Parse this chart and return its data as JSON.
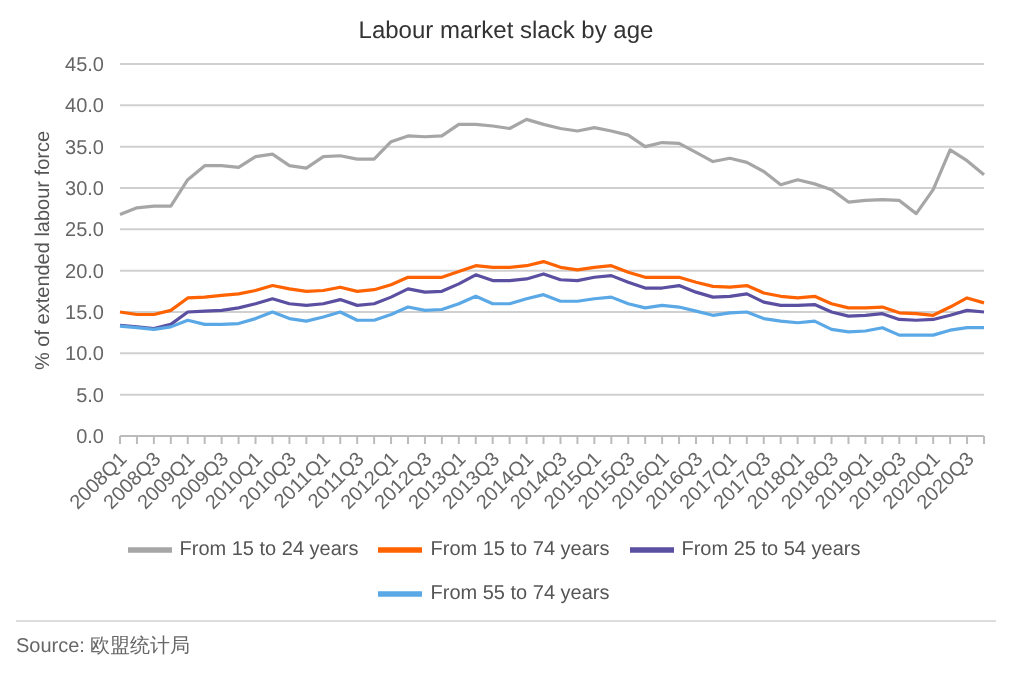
{
  "chart_data": {
    "type": "line",
    "title": "Labour market slack by age",
    "ylabel": "% of extended labour force",
    "categories": [
      "2008Q1",
      null,
      "2008Q3",
      null,
      "2009Q1",
      null,
      "2009Q3",
      null,
      "2010Q1",
      null,
      "2010Q3",
      null,
      "2011Q1",
      null,
      "2011Q3",
      null,
      "2012Q1",
      null,
      "2012Q3",
      null,
      "2013Q1",
      null,
      "2013Q3",
      null,
      "2014Q1",
      null,
      "2014Q3",
      null,
      "2015Q1",
      null,
      "2015Q3",
      null,
      "2016Q1",
      null,
      "2016Q3",
      null,
      "2017Q1",
      null,
      "2017Q3",
      null,
      "2018Q1",
      null,
      "2018Q3",
      null,
      "2019Q1",
      null,
      "2019Q3",
      null,
      "2020Q1",
      null,
      "2020Q3",
      null
    ],
    "series": [
      {
        "name": "From 15 to 24 years",
        "color": "#a6a6a6",
        "values": [
          26.8,
          27.6,
          27.8,
          27.8,
          31.0,
          32.7,
          32.7,
          32.5,
          33.8,
          34.1,
          32.7,
          32.4,
          33.8,
          33.9,
          33.5,
          33.5,
          35.6,
          36.3,
          36.2,
          36.3,
          37.7,
          37.7,
          37.5,
          37.2,
          38.3,
          37.7,
          37.2,
          36.9,
          37.3,
          36.9,
          36.4,
          35.0,
          35.5,
          35.4,
          34.3,
          33.2,
          33.6,
          33.1,
          32.0,
          30.4,
          31.0,
          30.5,
          29.8,
          28.3,
          28.5,
          28.6,
          28.5,
          26.9,
          29.8,
          34.6,
          33.3,
          31.6
        ]
      },
      {
        "name": "From 15 to 74 years",
        "color": "#ff6200",
        "values": [
          15.0,
          14.7,
          14.7,
          15.2,
          16.7,
          16.8,
          17.0,
          17.2,
          17.6,
          18.2,
          17.8,
          17.5,
          17.6,
          18.0,
          17.5,
          17.7,
          18.3,
          19.2,
          19.2,
          19.2,
          19.9,
          20.6,
          20.4,
          20.4,
          20.6,
          21.1,
          20.4,
          20.1,
          20.4,
          20.6,
          19.8,
          19.2,
          19.2,
          19.2,
          18.6,
          18.1,
          18.0,
          18.2,
          17.3,
          16.9,
          16.7,
          16.9,
          16.0,
          15.5,
          15.5,
          15.6,
          14.9,
          14.8,
          14.6,
          15.6,
          16.7,
          16.1
        ]
      },
      {
        "name": "From 25 to 54 years",
        "color": "#5a4fa0",
        "values": [
          13.4,
          13.2,
          13.0,
          13.5,
          15.0,
          15.1,
          15.2,
          15.5,
          16.0,
          16.6,
          16.0,
          15.8,
          16.0,
          16.5,
          15.8,
          16.0,
          16.8,
          17.8,
          17.4,
          17.5,
          18.4,
          19.5,
          18.8,
          18.8,
          19.0,
          19.6,
          18.9,
          18.8,
          19.2,
          19.4,
          18.6,
          17.9,
          17.9,
          18.2,
          17.4,
          16.8,
          16.9,
          17.2,
          16.2,
          15.8,
          15.8,
          15.9,
          15.0,
          14.5,
          14.6,
          14.8,
          14.1,
          14.0,
          14.1,
          14.6,
          15.2,
          15.0
        ]
      },
      {
        "name": "From 55 to 74 years",
        "color": "#5aa8e6",
        "values": [
          13.3,
          13.1,
          12.9,
          13.2,
          14.0,
          13.5,
          13.5,
          13.6,
          14.2,
          15.0,
          14.2,
          13.9,
          14.4,
          15.0,
          14.0,
          14.0,
          14.7,
          15.6,
          15.2,
          15.3,
          16.0,
          16.9,
          16.0,
          16.0,
          16.6,
          17.1,
          16.3,
          16.3,
          16.6,
          16.8,
          16.0,
          15.5,
          15.8,
          15.6,
          15.1,
          14.6,
          14.9,
          15.0,
          14.2,
          13.9,
          13.7,
          13.9,
          12.9,
          12.6,
          12.7,
          13.1,
          12.2,
          12.2,
          12.2,
          12.8,
          13.1,
          13.1
        ]
      }
    ],
    "ylim": [
      0,
      45
    ],
    "yticks": [
      {
        "value": 0,
        "label": "0.0"
      },
      {
        "value": 5,
        "label": "5.0"
      },
      {
        "value": 10,
        "label": "10.0"
      },
      {
        "value": 15,
        "label": "15.0"
      },
      {
        "value": 20,
        "label": "20.0"
      },
      {
        "value": 25,
        "label": "25.0"
      },
      {
        "value": 30,
        "label": "30.0"
      },
      {
        "value": 35,
        "label": "35.0"
      },
      {
        "value": 40,
        "label": "40.0"
      },
      {
        "value": 45,
        "label": "45.0"
      }
    ],
    "grid": "y",
    "legend": "bottom",
    "marker": "none",
    "line_style": "solid",
    "annotations": [
      "Source: 欧盟统计局"
    ]
  }
}
